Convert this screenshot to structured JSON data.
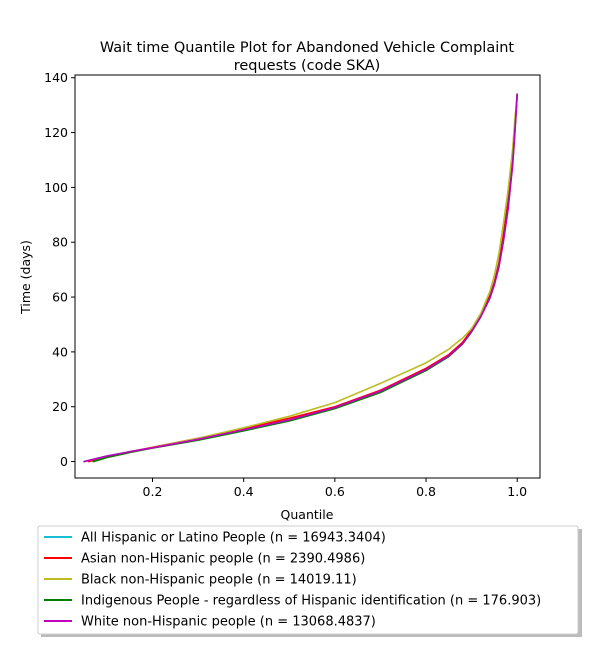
{
  "chart_data": {
    "type": "line",
    "title": [
      "Wait time Quantile Plot for Abandoned Vehicle Complaint",
      "requests (code SKA)"
    ],
    "xlabel": "Quantile",
    "ylabel": "Time (days)",
    "xlim": [
      0.03,
      1.05
    ],
    "ylim": [
      -6,
      141
    ],
    "xticks": [
      0.2,
      0.4,
      0.6,
      0.8,
      1.0
    ],
    "xtick_labels": [
      "0.2",
      "0.4",
      "0.6",
      "0.8",
      "1.0"
    ],
    "yticks": [
      0,
      20,
      40,
      60,
      80,
      100,
      120,
      140
    ],
    "ytick_labels": [
      "0",
      "20",
      "40",
      "60",
      "80",
      "100",
      "120",
      "140"
    ],
    "grid": false,
    "legend_position": "below",
    "series": [
      {
        "name": "All Hispanic or Latino People (n = 16943.3404)",
        "color": "#17becf",
        "points": [
          [
            0.05,
            0
          ],
          [
            0.1,
            2
          ],
          [
            0.15,
            3.6
          ],
          [
            0.2,
            5
          ],
          [
            0.3,
            8
          ],
          [
            0.4,
            11.5
          ],
          [
            0.5,
            15
          ],
          [
            0.6,
            19.5
          ],
          [
            0.7,
            25.5
          ],
          [
            0.8,
            33.5
          ],
          [
            0.85,
            38.5
          ],
          [
            0.88,
            43
          ],
          [
            0.9,
            47.5
          ],
          [
            0.92,
            53
          ],
          [
            0.94,
            60
          ],
          [
            0.95,
            65
          ],
          [
            0.96,
            72
          ],
          [
            0.97,
            82
          ],
          [
            0.98,
            94
          ],
          [
            0.99,
            110
          ],
          [
            0.995,
            122
          ],
          [
            1.0,
            134
          ]
        ]
      },
      {
        "name": "Asian non-Hispanic people (n = 2390.4986)",
        "color": "#ff0000",
        "points": [
          [
            0.06,
            0
          ],
          [
            0.1,
            1.8
          ],
          [
            0.15,
            3.5
          ],
          [
            0.2,
            5.2
          ],
          [
            0.3,
            8.5
          ],
          [
            0.4,
            12
          ],
          [
            0.5,
            15.8
          ],
          [
            0.6,
            20
          ],
          [
            0.7,
            26
          ],
          [
            0.8,
            34
          ],
          [
            0.85,
            39
          ],
          [
            0.88,
            43.5
          ],
          [
            0.9,
            48
          ],
          [
            0.92,
            53.5
          ],
          [
            0.94,
            60.5
          ],
          [
            0.95,
            65.5
          ],
          [
            0.96,
            72.5
          ],
          [
            0.97,
            83
          ],
          [
            0.98,
            95
          ],
          [
            0.99,
            111
          ],
          [
            0.995,
            123
          ],
          [
            1.0,
            134
          ]
        ]
      },
      {
        "name": "Black non-Hispanic people (n = 14019.11)",
        "color": "#bcbd22",
        "points": [
          [
            0.07,
            0
          ],
          [
            0.1,
            1.5
          ],
          [
            0.15,
            3.3
          ],
          [
            0.2,
            5.1
          ],
          [
            0.3,
            8.5
          ],
          [
            0.4,
            12.3
          ],
          [
            0.5,
            16.5
          ],
          [
            0.6,
            21.5
          ],
          [
            0.7,
            28.5
          ],
          [
            0.8,
            36
          ],
          [
            0.85,
            41
          ],
          [
            0.88,
            45
          ],
          [
            0.9,
            48.5
          ],
          [
            0.92,
            54
          ],
          [
            0.94,
            62
          ],
          [
            0.95,
            68
          ],
          [
            0.96,
            76
          ],
          [
            0.97,
            87
          ],
          [
            0.98,
            99
          ],
          [
            0.99,
            114
          ],
          [
            0.995,
            125
          ],
          [
            1.0,
            134
          ]
        ]
      },
      {
        "name": "Indigenous People - regardless of Hispanic identification (n = 176.903)",
        "color": "#008000",
        "points": [
          [
            0.07,
            0
          ],
          [
            0.1,
            1.5
          ],
          [
            0.15,
            3.3
          ],
          [
            0.2,
            4.9
          ],
          [
            0.3,
            7.8
          ],
          [
            0.4,
            11.2
          ],
          [
            0.5,
            14.8
          ],
          [
            0.6,
            19.3
          ],
          [
            0.7,
            25.2
          ],
          [
            0.8,
            33.2
          ],
          [
            0.85,
            38.3
          ],
          [
            0.88,
            42.8
          ],
          [
            0.9,
            47.3
          ],
          [
            0.92,
            52.8
          ],
          [
            0.94,
            59.8
          ],
          [
            0.95,
            64.8
          ],
          [
            0.96,
            71.5
          ],
          [
            0.97,
            81
          ],
          [
            0.98,
            93
          ],
          [
            0.99,
            109
          ],
          [
            0.995,
            121
          ],
          [
            1.0,
            134
          ]
        ]
      },
      {
        "name": "White non-Hispanic people (n = 13068.4837)",
        "color": "#bf00bf",
        "points": [
          [
            0.05,
            0
          ],
          [
            0.1,
            2
          ],
          [
            0.15,
            3.6
          ],
          [
            0.2,
            5
          ],
          [
            0.3,
            8.1
          ],
          [
            0.4,
            11.6
          ],
          [
            0.5,
            15.2
          ],
          [
            0.6,
            19.7
          ],
          [
            0.7,
            25.7
          ],
          [
            0.8,
            33.6
          ],
          [
            0.85,
            38.6
          ],
          [
            0.88,
            43
          ],
          [
            0.9,
            47.5
          ],
          [
            0.92,
            52.8
          ],
          [
            0.94,
            59.5
          ],
          [
            0.95,
            64.5
          ],
          [
            0.96,
            71
          ],
          [
            0.97,
            80.5
          ],
          [
            0.98,
            92
          ],
          [
            0.99,
            108
          ],
          [
            0.995,
            120
          ],
          [
            1.0,
            134
          ]
        ]
      }
    ]
  }
}
